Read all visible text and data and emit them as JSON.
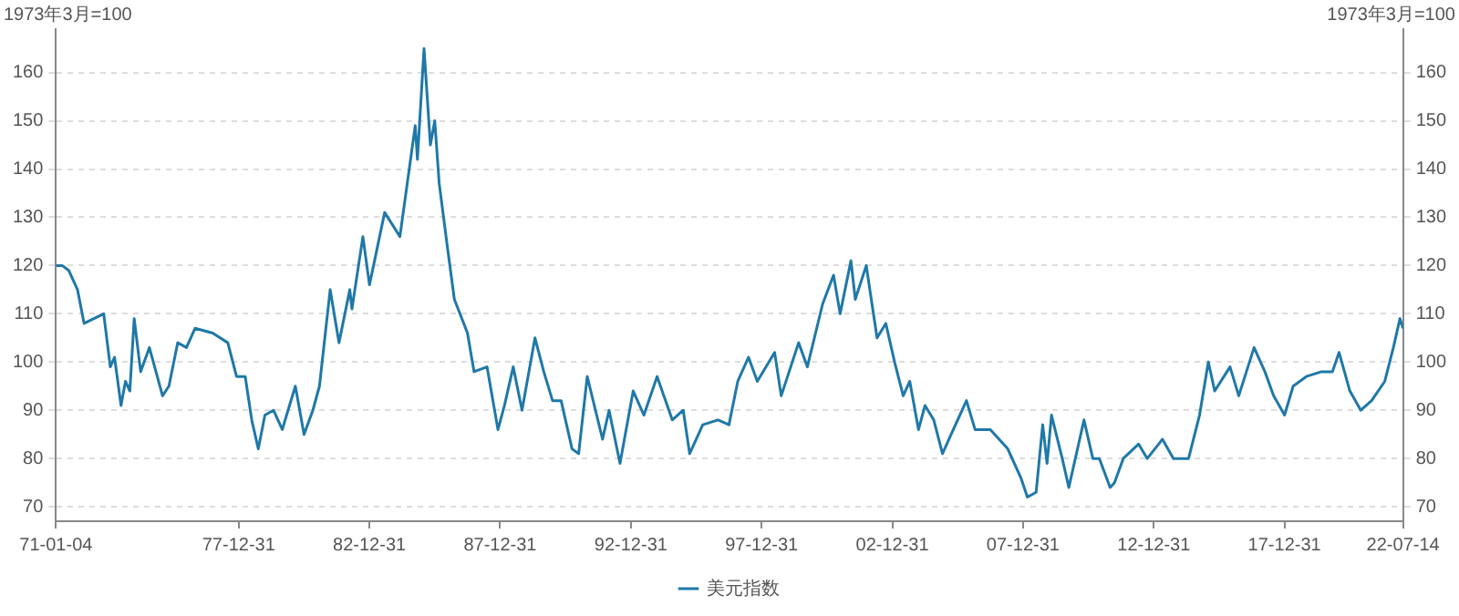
{
  "chart_data": {
    "type": "line",
    "ylabel": "1973年3月=100",
    "y2label": "1973年3月=100",
    "x": [
      "1971-01-04",
      "1971-04",
      "1971-07",
      "1971-11",
      "1972-02",
      "1972-11",
      "1973-02",
      "1973-04",
      "1973-07",
      "1973-09",
      "1973-11",
      "1974-01",
      "1974-04",
      "1974-08",
      "1975-02",
      "1975-05",
      "1975-09",
      "1976-01",
      "1976-05",
      "1977-01",
      "1977-08",
      "1977-12",
      "1978-04",
      "1978-07",
      "1978-10",
      "1979-01",
      "1979-05",
      "1979-09",
      "1980-03",
      "1980-07",
      "1980-11",
      "1981-02",
      "1981-07",
      "1981-11",
      "1982-04",
      "1982-05",
      "1982-10",
      "1983-01",
      "1983-08",
      "1984-03",
      "1984-10",
      "1984-11",
      "1985-02",
      "1985-05",
      "1985-07",
      "1985-09",
      "1986-01",
      "1986-04",
      "1986-10",
      "1987-01",
      "1987-07",
      "1987-12",
      "1988-03",
      "1988-07",
      "1988-11",
      "1989-05",
      "1989-09",
      "1990-01",
      "1990-05",
      "1990-10",
      "1991-01",
      "1991-05",
      "1991-12",
      "1992-03",
      "1992-08",
      "1993-02",
      "1993-07",
      "1994-01",
      "1994-08",
      "1995-01",
      "1995-04",
      "1995-10",
      "1996-05",
      "1996-10",
      "1997-02",
      "1997-07",
      "1997-11",
      "1998-07",
      "1998-10",
      "1999-06",
      "1999-10",
      "2000-05",
      "2000-10",
      "2001-01",
      "2001-06",
      "2001-08",
      "2002-01",
      "2002-06",
      "2002-10",
      "2003-02",
      "2003-06",
      "2003-09",
      "2004-01",
      "2004-04",
      "2004-08",
      "2004-12",
      "2005-04",
      "2005-11",
      "2006-03",
      "2006-10",
      "2007-06",
      "2007-12",
      "2008-03",
      "2008-07",
      "2008-10",
      "2008-12",
      "2009-02",
      "2009-07",
      "2009-10",
      "2010-05",
      "2010-09",
      "2010-12",
      "2011-05",
      "2011-07",
      "2011-11",
      "2012-06",
      "2012-10",
      "2013-05",
      "2013-10",
      "2014-05",
      "2014-10",
      "2015-02",
      "2015-05",
      "2015-12",
      "2016-04",
      "2016-11",
      "2017-04",
      "2017-08",
      "2018-01",
      "2018-05",
      "2018-11",
      "2019-06",
      "2019-11",
      "2020-02",
      "2020-07",
      "2020-12",
      "2021-05",
      "2021-11",
      "2022-03",
      "2022-06",
      "2022-07-14"
    ],
    "series": [
      {
        "name": "美元指数",
        "color": "#1f78a8",
        "values": [
          120,
          120,
          119,
          115,
          108,
          110,
          99,
          101,
          91,
          96,
          94,
          109,
          98,
          103,
          93,
          95,
          104,
          103,
          107,
          106,
          104,
          97,
          97,
          88,
          82,
          89,
          90,
          86,
          95,
          85,
          90,
          95,
          115,
          104,
          115,
          111,
          126,
          116,
          131,
          126,
          149,
          142,
          165,
          145,
          150,
          137,
          123,
          113,
          106,
          98,
          99,
          86,
          91,
          99,
          90,
          105,
          98,
          92,
          92,
          82,
          81,
          97,
          84,
          90,
          79,
          94,
          89,
          97,
          88,
          90,
          81,
          87,
          88,
          87,
          96,
          101,
          96,
          102,
          93,
          104,
          99,
          112,
          118,
          110,
          121,
          113,
          120,
          105,
          108,
          100,
          93,
          96,
          86,
          91,
          88,
          81,
          85,
          92,
          86,
          86,
          82,
          76,
          72,
          73,
          87,
          79,
          89,
          80,
          74,
          88,
          80,
          80,
          74,
          75,
          80,
          83,
          80,
          84,
          80,
          80,
          89,
          100,
          94,
          99,
          93,
          103,
          98,
          93,
          89,
          95,
          97,
          98,
          98,
          102,
          94,
          90,
          92,
          96,
          103,
          109,
          107
        ]
      }
    ],
    "xlim": [
      "1971-01-04",
      "2022-07-14"
    ],
    "xticks": [
      {
        "value": "1971-01-04",
        "label": "71-01-04"
      },
      {
        "value": "1977-12-31",
        "label": "77-12-31"
      },
      {
        "value": "1982-12-31",
        "label": "82-12-31"
      },
      {
        "value": "1987-12-31",
        "label": "87-12-31"
      },
      {
        "value": "1992-12-31",
        "label": "92-12-31"
      },
      {
        "value": "1997-12-31",
        "label": "97-12-31"
      },
      {
        "value": "2002-12-31",
        "label": "02-12-31"
      },
      {
        "value": "2007-12-31",
        "label": "07-12-31"
      },
      {
        "value": "2012-12-31",
        "label": "12-12-31"
      },
      {
        "value": "2017-12-31",
        "label": "17-12-31"
      },
      {
        "value": "2022-07-14",
        "label": "22-07-14"
      }
    ],
    "ylim": [
      67,
      169
    ],
    "yticks": [
      70,
      80,
      90,
      100,
      110,
      120,
      130,
      140,
      150,
      160
    ],
    "y2lim": [
      67,
      169
    ],
    "y2ticks": [
      70,
      80,
      90,
      100,
      110,
      120,
      130,
      140,
      150,
      160
    ],
    "grid": "y",
    "legend": "bottom",
    "marker": "none",
    "line_style": "solid"
  }
}
